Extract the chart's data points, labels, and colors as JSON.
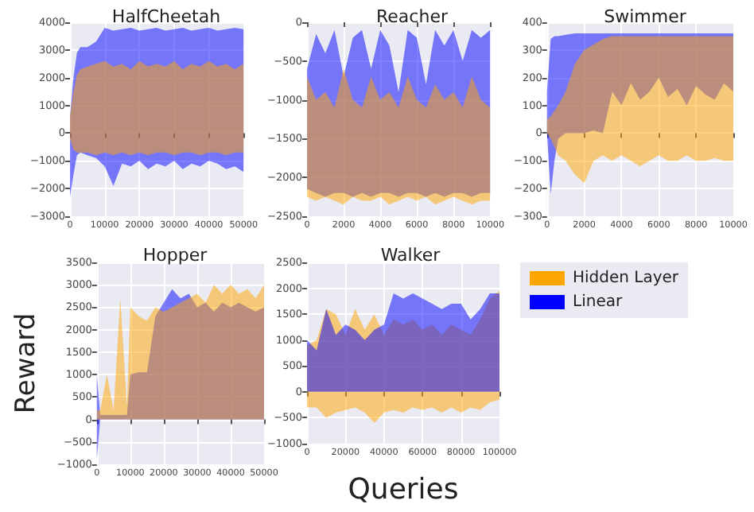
{
  "chart_data": [
    {
      "type": "line",
      "title": "HalfCheetah",
      "x": [
        0,
        1000,
        2000,
        3000,
        5000,
        7500,
        10000,
        12500,
        15000,
        17500,
        20000,
        22500,
        25000,
        27500,
        30000,
        32500,
        35000,
        37500,
        40000,
        42500,
        45000,
        47500,
        50000
      ],
      "xlim": [
        0,
        50000
      ],
      "xticks": [
        0,
        10000,
        20000,
        30000,
        40000,
        50000
      ],
      "ylim": [
        -3000,
        4000
      ],
      "yticks": [
        -3000,
        -2000,
        -1000,
        0,
        1000,
        2000,
        3000,
        4000
      ],
      "grid": true,
      "series": [
        {
          "color": "#0000ff",
          "values": [
            null,
            null,
            null,
            null,
            null,
            null,
            null,
            null,
            null,
            null,
            null,
            null,
            null,
            null,
            null,
            null,
            null,
            null,
            null,
            null,
            null,
            null,
            null
          ],
          "upper": [
            600,
            2000,
            2900,
            3100,
            3100,
            3300,
            3800,
            3700,
            3750,
            3800,
            3700,
            3750,
            3800,
            3700,
            3750,
            3800,
            3700,
            3750,
            3800,
            3700,
            3750,
            3800,
            3750
          ],
          "lower": [
            -2300,
            -1500,
            -800,
            -700,
            -800,
            -900,
            -1200,
            -1900,
            -1100,
            -1200,
            -1000,
            -1300,
            -1100,
            -1200,
            -1000,
            -1300,
            -1100,
            -1200,
            -1000,
            -1100,
            -1300,
            -1200,
            -1400
          ]
        },
        {
          "color": "#ffa500",
          "values": [
            null,
            null,
            null,
            null,
            null,
            null,
            null,
            null,
            null,
            null,
            null,
            null,
            null,
            null,
            null,
            null,
            null,
            null,
            null,
            null,
            null,
            null,
            null
          ],
          "upper": [
            600,
            1500,
            2100,
            2300,
            2400,
            2500,
            2600,
            2400,
            2500,
            2300,
            2600,
            2400,
            2500,
            2400,
            2600,
            2300,
            2500,
            2400,
            2600,
            2400,
            2500,
            2300,
            2500
          ],
          "lower": [
            -200,
            -600,
            -700,
            -700,
            -700,
            -800,
            -700,
            -800,
            -700,
            -800,
            -700,
            -800,
            -700,
            -700,
            -800,
            -700,
            -700,
            -800,
            -700,
            -700,
            -800,
            -700,
            -700
          ]
        }
      ]
    },
    {
      "type": "line",
      "title": "Reacher",
      "x": [
        0,
        500,
        1000,
        1500,
        2000,
        2500,
        3000,
        3500,
        4000,
        4500,
        5000,
        5500,
        6000,
        6500,
        7000,
        7500,
        8000,
        8500,
        9000,
        9500,
        10000
      ],
      "xlim": [
        0,
        10000
      ],
      "xticks": [
        0,
        2000,
        4000,
        6000,
        8000,
        10000
      ],
      "ylim": [
        -2500,
        0
      ],
      "yticks": [
        -2500,
        -2000,
        -1500,
        -1000,
        -500,
        0
      ],
      "grid": true,
      "series": [
        {
          "color": "#0000ff",
          "values": [
            null,
            null,
            null,
            null,
            null,
            null,
            null,
            null,
            null,
            null,
            null,
            null,
            null,
            null,
            null,
            null,
            null,
            null,
            null,
            null,
            null
          ],
          "upper": [
            -600,
            -150,
            -400,
            -100,
            -700,
            -200,
            -100,
            -600,
            -100,
            -300,
            -900,
            -100,
            -200,
            -800,
            -100,
            -300,
            -100,
            -500,
            -100,
            -200,
            -100
          ],
          "lower": [
            -2150,
            -2200,
            -2250,
            -2200,
            -2200,
            -2250,
            -2200,
            -2250,
            -2200,
            -2200,
            -2250,
            -2200,
            -2200,
            -2250,
            -2200,
            -2250,
            -2200,
            -2200,
            -2250,
            -2200,
            -2200
          ]
        },
        {
          "color": "#ffa500",
          "values": [
            null,
            null,
            null,
            null,
            null,
            null,
            null,
            null,
            null,
            null,
            null,
            null,
            null,
            null,
            null,
            null,
            null,
            null,
            null,
            null,
            null
          ],
          "upper": [
            -700,
            -1000,
            -900,
            -1100,
            -600,
            -1000,
            -1100,
            -700,
            -1000,
            -900,
            -1100,
            -700,
            -1000,
            -1100,
            -800,
            -1000,
            -900,
            -1100,
            -700,
            -1000,
            -1100
          ],
          "lower": [
            -2250,
            -2300,
            -2250,
            -2300,
            -2350,
            -2250,
            -2300,
            -2300,
            -2250,
            -2350,
            -2300,
            -2250,
            -2300,
            -2250,
            -2350,
            -2300,
            -2250,
            -2300,
            -2350,
            -2300,
            -2300
          ]
        }
      ]
    },
    {
      "type": "line",
      "title": "Swimmer",
      "x": [
        0,
        200,
        400,
        600,
        1000,
        1500,
        2000,
        2500,
        3000,
        3500,
        4000,
        4500,
        5000,
        5500,
        6000,
        6500,
        7000,
        7500,
        8000,
        8500,
        9000,
        9500,
        10000
      ],
      "xlim": [
        0,
        10000
      ],
      "xticks": [
        0,
        2000,
        4000,
        6000,
        8000,
        10000
      ],
      "ylim": [
        -300,
        400
      ],
      "yticks": [
        -300,
        -200,
        -100,
        0,
        100,
        200,
        300,
        400
      ],
      "grid": true,
      "series": [
        {
          "color": "#0000ff",
          "values": [
            null,
            null,
            null,
            null,
            null,
            null,
            null,
            null,
            null,
            null,
            null,
            null,
            null,
            null,
            null,
            null,
            null,
            null,
            null,
            null,
            null,
            null,
            null
          ],
          "upper": [
            150,
            340,
            350,
            350,
            355,
            360,
            360,
            360,
            360,
            360,
            360,
            360,
            360,
            360,
            360,
            360,
            360,
            360,
            360,
            360,
            360,
            360,
            360
          ],
          "lower": [
            0,
            -220,
            -100,
            -20,
            0,
            0,
            0,
            10,
            0,
            150,
            100,
            180,
            120,
            150,
            200,
            130,
            160,
            100,
            170,
            140,
            120,
            180,
            150
          ]
        },
        {
          "color": "#ffa500",
          "values": [
            null,
            null,
            null,
            null,
            null,
            null,
            null,
            null,
            null,
            null,
            null,
            null,
            null,
            null,
            null,
            null,
            null,
            null,
            null,
            null,
            null,
            null,
            null
          ],
          "upper": [
            50,
            60,
            80,
            100,
            150,
            250,
            300,
            320,
            340,
            350,
            350,
            350,
            350,
            350,
            350,
            350,
            350,
            350,
            350,
            350,
            350,
            350,
            350
          ],
          "lower": [
            0,
            -20,
            -50,
            -80,
            -100,
            -150,
            -180,
            -100,
            -80,
            -100,
            -80,
            -100,
            -120,
            -100,
            -80,
            -100,
            -100,
            -80,
            -100,
            -100,
            -90,
            -100,
            -100
          ]
        }
      ]
    },
    {
      "type": "line",
      "title": "Hopper",
      "ylabel": "Reward",
      "x": [
        0,
        1000,
        3000,
        5000,
        7000,
        9000,
        10000,
        12500,
        15000,
        17500,
        20000,
        22500,
        25000,
        27500,
        30000,
        32500,
        35000,
        37500,
        40000,
        42500,
        45000,
        47500,
        50000
      ],
      "xlim": [
        0,
        50000
      ],
      "xticks": [
        0,
        10000,
        20000,
        30000,
        40000,
        50000
      ],
      "ylim": [
        -1000,
        3500
      ],
      "yticks": [
        -1000,
        -500,
        0,
        500,
        1000,
        1500,
        2000,
        2500,
        3000,
        3500
      ],
      "grid": true,
      "series": [
        {
          "color": "#0000ff",
          "values": [
            null,
            null,
            null,
            null,
            null,
            null,
            null,
            null,
            null,
            null,
            null,
            null,
            null,
            null,
            null,
            null,
            null,
            null,
            null,
            null,
            null,
            null,
            null
          ],
          "upper": [
            1000,
            100,
            100,
            100,
            100,
            100,
            1000,
            1050,
            1050,
            2300,
            2600,
            2900,
            2700,
            2800,
            2500,
            2600,
            2400,
            2600,
            2500,
            2600,
            2500,
            2400,
            2500
          ],
          "lower": [
            -900,
            0,
            0,
            0,
            0,
            0,
            0,
            0,
            0,
            0,
            0,
            0,
            0,
            0,
            0,
            0,
            0,
            0,
            0,
            0,
            0,
            0,
            0
          ]
        },
        {
          "color": "#ffa500",
          "values": [
            null,
            null,
            null,
            null,
            null,
            null,
            null,
            null,
            null,
            null,
            null,
            null,
            null,
            null,
            null,
            null,
            null,
            null,
            null,
            null,
            null,
            null,
            null
          ],
          "upper": [
            200,
            200,
            1000,
            200,
            2700,
            300,
            2500,
            2300,
            2200,
            2500,
            2400,
            2500,
            2600,
            2700,
            2800,
            2600,
            3000,
            2800,
            3000,
            2800,
            2900,
            2700,
            3000
          ],
          "lower": [
            0,
            0,
            0,
            0,
            0,
            0,
            0,
            0,
            0,
            0,
            0,
            0,
            0,
            0,
            0,
            0,
            0,
            0,
            0,
            0,
            0,
            0,
            0
          ]
        }
      ]
    },
    {
      "type": "line",
      "title": "Walker",
      "xlabel": "Queries",
      "legend": "right",
      "x": [
        0,
        5000,
        10000,
        15000,
        20000,
        25000,
        30000,
        35000,
        40000,
        45000,
        50000,
        55000,
        60000,
        65000,
        70000,
        75000,
        80000,
        85000,
        90000,
        95000,
        100000
      ],
      "xlim": [
        0,
        100000
      ],
      "xticks": [
        0,
        20000,
        40000,
        60000,
        80000,
        100000
      ],
      "ylim": [
        -1000,
        2500
      ],
      "yticks": [
        -1000,
        -500,
        0,
        500,
        1000,
        1500,
        2000,
        2500
      ],
      "grid": true,
      "series": [
        {
          "name": "Hidden Layer",
          "color": "#ffa500",
          "values": [
            null,
            null,
            null,
            null,
            null,
            null,
            null,
            null,
            null,
            null,
            null,
            null,
            null,
            null,
            null,
            null,
            null,
            null,
            null,
            null,
            null
          ],
          "upper": [
            900,
            1000,
            1600,
            1500,
            1100,
            1600,
            1200,
            1500,
            1100,
            1400,
            1300,
            1400,
            1200,
            1300,
            1100,
            1300,
            1200,
            1100,
            1400,
            1800,
            1950
          ],
          "lower": [
            -300,
            -300,
            -500,
            -400,
            -350,
            -300,
            -400,
            -600,
            -400,
            -350,
            -400,
            -300,
            -350,
            -300,
            -400,
            -300,
            -400,
            -300,
            -350,
            -200,
            -150
          ]
        },
        {
          "name": "Linear",
          "color": "#0000ff",
          "values": [
            null,
            null,
            null,
            null,
            null,
            null,
            null,
            null,
            null,
            null,
            null,
            null,
            null,
            null,
            null,
            null,
            null,
            null,
            null,
            null,
            null
          ],
          "upper": [
            1000,
            800,
            1600,
            1100,
            1300,
            1200,
            1000,
            1200,
            1300,
            1900,
            1800,
            1900,
            1800,
            1700,
            1600,
            1700,
            1700,
            1400,
            1600,
            1900,
            1900
          ],
          "lower": [
            0,
            0,
            0,
            0,
            0,
            0,
            0,
            0,
            0,
            0,
            0,
            0,
            0,
            0,
            0,
            0,
            0,
            0,
            0,
            0,
            0
          ]
        }
      ]
    }
  ]
}
